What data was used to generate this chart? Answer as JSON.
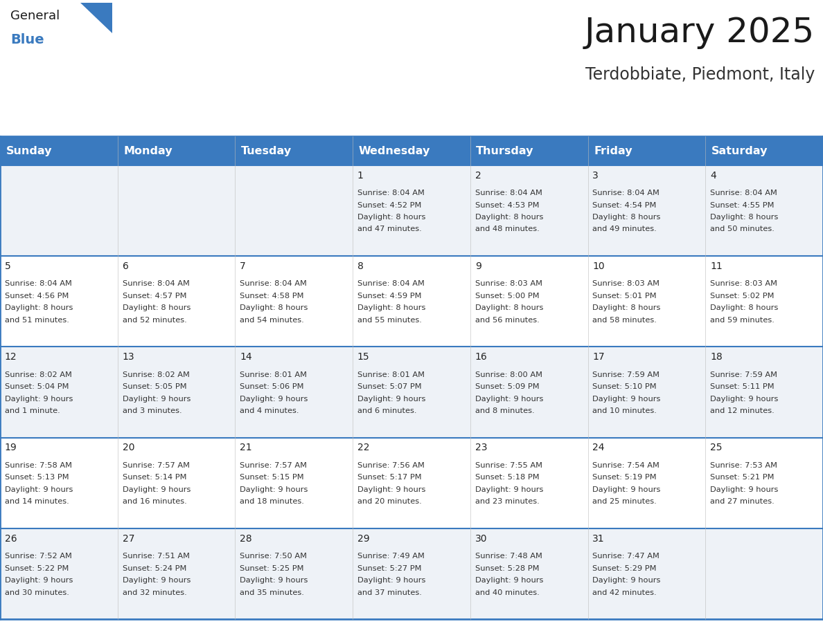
{
  "title": "January 2025",
  "subtitle": "Terdobbiate, Piedmont, Italy",
  "header_bg": "#3a7abf",
  "header_text": "#ffffff",
  "row_bg_even": "#eef2f7",
  "row_bg_odd": "#ffffff",
  "border_color": "#3a7abf",
  "text_color_num": "#222222",
  "text_color_info": "#333333",
  "day_names": [
    "Sunday",
    "Monday",
    "Tuesday",
    "Wednesday",
    "Thursday",
    "Friday",
    "Saturday"
  ],
  "days": [
    {
      "col": 0,
      "row": 0,
      "num": "",
      "sunrise": "",
      "sunset": "",
      "daylight_line1": "",
      "daylight_line2": ""
    },
    {
      "col": 1,
      "row": 0,
      "num": "",
      "sunrise": "",
      "sunset": "",
      "daylight_line1": "",
      "daylight_line2": ""
    },
    {
      "col": 2,
      "row": 0,
      "num": "",
      "sunrise": "",
      "sunset": "",
      "daylight_line1": "",
      "daylight_line2": ""
    },
    {
      "col": 3,
      "row": 0,
      "num": "1",
      "sunrise": "Sunrise: 8:04 AM",
      "sunset": "Sunset: 4:52 PM",
      "daylight_line1": "Daylight: 8 hours",
      "daylight_line2": "and 47 minutes."
    },
    {
      "col": 4,
      "row": 0,
      "num": "2",
      "sunrise": "Sunrise: 8:04 AM",
      "sunset": "Sunset: 4:53 PM",
      "daylight_line1": "Daylight: 8 hours",
      "daylight_line2": "and 48 minutes."
    },
    {
      "col": 5,
      "row": 0,
      "num": "3",
      "sunrise": "Sunrise: 8:04 AM",
      "sunset": "Sunset: 4:54 PM",
      "daylight_line1": "Daylight: 8 hours",
      "daylight_line2": "and 49 minutes."
    },
    {
      "col": 6,
      "row": 0,
      "num": "4",
      "sunrise": "Sunrise: 8:04 AM",
      "sunset": "Sunset: 4:55 PM",
      "daylight_line1": "Daylight: 8 hours",
      "daylight_line2": "and 50 minutes."
    },
    {
      "col": 0,
      "row": 1,
      "num": "5",
      "sunrise": "Sunrise: 8:04 AM",
      "sunset": "Sunset: 4:56 PM",
      "daylight_line1": "Daylight: 8 hours",
      "daylight_line2": "and 51 minutes."
    },
    {
      "col": 1,
      "row": 1,
      "num": "6",
      "sunrise": "Sunrise: 8:04 AM",
      "sunset": "Sunset: 4:57 PM",
      "daylight_line1": "Daylight: 8 hours",
      "daylight_line2": "and 52 minutes."
    },
    {
      "col": 2,
      "row": 1,
      "num": "7",
      "sunrise": "Sunrise: 8:04 AM",
      "sunset": "Sunset: 4:58 PM",
      "daylight_line1": "Daylight: 8 hours",
      "daylight_line2": "and 54 minutes."
    },
    {
      "col": 3,
      "row": 1,
      "num": "8",
      "sunrise": "Sunrise: 8:04 AM",
      "sunset": "Sunset: 4:59 PM",
      "daylight_line1": "Daylight: 8 hours",
      "daylight_line2": "and 55 minutes."
    },
    {
      "col": 4,
      "row": 1,
      "num": "9",
      "sunrise": "Sunrise: 8:03 AM",
      "sunset": "Sunset: 5:00 PM",
      "daylight_line1": "Daylight: 8 hours",
      "daylight_line2": "and 56 minutes."
    },
    {
      "col": 5,
      "row": 1,
      "num": "10",
      "sunrise": "Sunrise: 8:03 AM",
      "sunset": "Sunset: 5:01 PM",
      "daylight_line1": "Daylight: 8 hours",
      "daylight_line2": "and 58 minutes."
    },
    {
      "col": 6,
      "row": 1,
      "num": "11",
      "sunrise": "Sunrise: 8:03 AM",
      "sunset": "Sunset: 5:02 PM",
      "daylight_line1": "Daylight: 8 hours",
      "daylight_line2": "and 59 minutes."
    },
    {
      "col": 0,
      "row": 2,
      "num": "12",
      "sunrise": "Sunrise: 8:02 AM",
      "sunset": "Sunset: 5:04 PM",
      "daylight_line1": "Daylight: 9 hours",
      "daylight_line2": "and 1 minute."
    },
    {
      "col": 1,
      "row": 2,
      "num": "13",
      "sunrise": "Sunrise: 8:02 AM",
      "sunset": "Sunset: 5:05 PM",
      "daylight_line1": "Daylight: 9 hours",
      "daylight_line2": "and 3 minutes."
    },
    {
      "col": 2,
      "row": 2,
      "num": "14",
      "sunrise": "Sunrise: 8:01 AM",
      "sunset": "Sunset: 5:06 PM",
      "daylight_line1": "Daylight: 9 hours",
      "daylight_line2": "and 4 minutes."
    },
    {
      "col": 3,
      "row": 2,
      "num": "15",
      "sunrise": "Sunrise: 8:01 AM",
      "sunset": "Sunset: 5:07 PM",
      "daylight_line1": "Daylight: 9 hours",
      "daylight_line2": "and 6 minutes."
    },
    {
      "col": 4,
      "row": 2,
      "num": "16",
      "sunrise": "Sunrise: 8:00 AM",
      "sunset": "Sunset: 5:09 PM",
      "daylight_line1": "Daylight: 9 hours",
      "daylight_line2": "and 8 minutes."
    },
    {
      "col": 5,
      "row": 2,
      "num": "17",
      "sunrise": "Sunrise: 7:59 AM",
      "sunset": "Sunset: 5:10 PM",
      "daylight_line1": "Daylight: 9 hours",
      "daylight_line2": "and 10 minutes."
    },
    {
      "col": 6,
      "row": 2,
      "num": "18",
      "sunrise": "Sunrise: 7:59 AM",
      "sunset": "Sunset: 5:11 PM",
      "daylight_line1": "Daylight: 9 hours",
      "daylight_line2": "and 12 minutes."
    },
    {
      "col": 0,
      "row": 3,
      "num": "19",
      "sunrise": "Sunrise: 7:58 AM",
      "sunset": "Sunset: 5:13 PM",
      "daylight_line1": "Daylight: 9 hours",
      "daylight_line2": "and 14 minutes."
    },
    {
      "col": 1,
      "row": 3,
      "num": "20",
      "sunrise": "Sunrise: 7:57 AM",
      "sunset": "Sunset: 5:14 PM",
      "daylight_line1": "Daylight: 9 hours",
      "daylight_line2": "and 16 minutes."
    },
    {
      "col": 2,
      "row": 3,
      "num": "21",
      "sunrise": "Sunrise: 7:57 AM",
      "sunset": "Sunset: 5:15 PM",
      "daylight_line1": "Daylight: 9 hours",
      "daylight_line2": "and 18 minutes."
    },
    {
      "col": 3,
      "row": 3,
      "num": "22",
      "sunrise": "Sunrise: 7:56 AM",
      "sunset": "Sunset: 5:17 PM",
      "daylight_line1": "Daylight: 9 hours",
      "daylight_line2": "and 20 minutes."
    },
    {
      "col": 4,
      "row": 3,
      "num": "23",
      "sunrise": "Sunrise: 7:55 AM",
      "sunset": "Sunset: 5:18 PM",
      "daylight_line1": "Daylight: 9 hours",
      "daylight_line2": "and 23 minutes."
    },
    {
      "col": 5,
      "row": 3,
      "num": "24",
      "sunrise": "Sunrise: 7:54 AM",
      "sunset": "Sunset: 5:19 PM",
      "daylight_line1": "Daylight: 9 hours",
      "daylight_line2": "and 25 minutes."
    },
    {
      "col": 6,
      "row": 3,
      "num": "25",
      "sunrise": "Sunrise: 7:53 AM",
      "sunset": "Sunset: 5:21 PM",
      "daylight_line1": "Daylight: 9 hours",
      "daylight_line2": "and 27 minutes."
    },
    {
      "col": 0,
      "row": 4,
      "num": "26",
      "sunrise": "Sunrise: 7:52 AM",
      "sunset": "Sunset: 5:22 PM",
      "daylight_line1": "Daylight: 9 hours",
      "daylight_line2": "and 30 minutes."
    },
    {
      "col": 1,
      "row": 4,
      "num": "27",
      "sunrise": "Sunrise: 7:51 AM",
      "sunset": "Sunset: 5:24 PM",
      "daylight_line1": "Daylight: 9 hours",
      "daylight_line2": "and 32 minutes."
    },
    {
      "col": 2,
      "row": 4,
      "num": "28",
      "sunrise": "Sunrise: 7:50 AM",
      "sunset": "Sunset: 5:25 PM",
      "daylight_line1": "Daylight: 9 hours",
      "daylight_line2": "and 35 minutes."
    },
    {
      "col": 3,
      "row": 4,
      "num": "29",
      "sunrise": "Sunrise: 7:49 AM",
      "sunset": "Sunset: 5:27 PM",
      "daylight_line1": "Daylight: 9 hours",
      "daylight_line2": "and 37 minutes."
    },
    {
      "col": 4,
      "row": 4,
      "num": "30",
      "sunrise": "Sunrise: 7:48 AM",
      "sunset": "Sunset: 5:28 PM",
      "daylight_line1": "Daylight: 9 hours",
      "daylight_line2": "and 40 minutes."
    },
    {
      "col": 5,
      "row": 4,
      "num": "31",
      "sunrise": "Sunrise: 7:47 AM",
      "sunset": "Sunset: 5:29 PM",
      "daylight_line1": "Daylight: 9 hours",
      "daylight_line2": "and 42 minutes."
    },
    {
      "col": 6,
      "row": 4,
      "num": "",
      "sunrise": "",
      "sunset": "",
      "daylight_line1": "",
      "daylight_line2": ""
    }
  ],
  "num_rows": 5,
  "num_cols": 7,
  "title_fontsize": 36,
  "subtitle_fontsize": 17,
  "header_fontsize": 11.5,
  "daynum_fontsize": 10,
  "info_fontsize": 8.2,
  "logo_general_fontsize": 13,
  "logo_blue_fontsize": 14
}
